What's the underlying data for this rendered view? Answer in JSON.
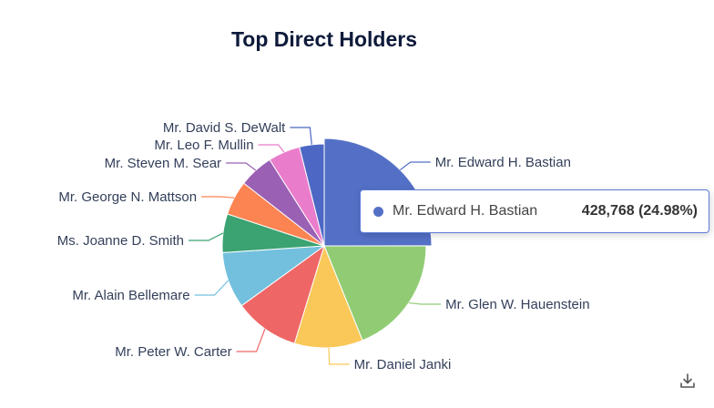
{
  "chart_data": {
    "type": "pie",
    "title": "Top Direct Holders",
    "categories": [
      "Mr. Edward H. Bastian",
      "Mr. Glen W. Hauenstein",
      "Mr. Daniel Janki",
      "Mr. Peter W. Carter",
      "Mr. Alain Bellemare",
      "Ms. Joanne D. Smith",
      "Mr. George N. Mattson",
      "Mr. Steven M. Sear",
      "Mr. Leo F. Mullin",
      "Mr. David S. DeWalt"
    ],
    "values": [
      428768,
      324000,
      186000,
      177000,
      153000,
      105000,
      94000,
      94000,
      87000,
      67000
    ],
    "colors": [
      "#5470c6",
      "#91cc75",
      "#fac858",
      "#ee6666",
      "#73c0de",
      "#3ba272",
      "#fc8452",
      "#9a60b4",
      "#ea7ccc",
      "#4c67c4"
    ],
    "highlighted_index": 0
  },
  "tooltip": {
    "name": "Mr. Edward H. Bastian",
    "value": "428,768 (24.98%)",
    "color": "#5470c6"
  },
  "toolbar": {
    "download_icon": "download-icon"
  }
}
